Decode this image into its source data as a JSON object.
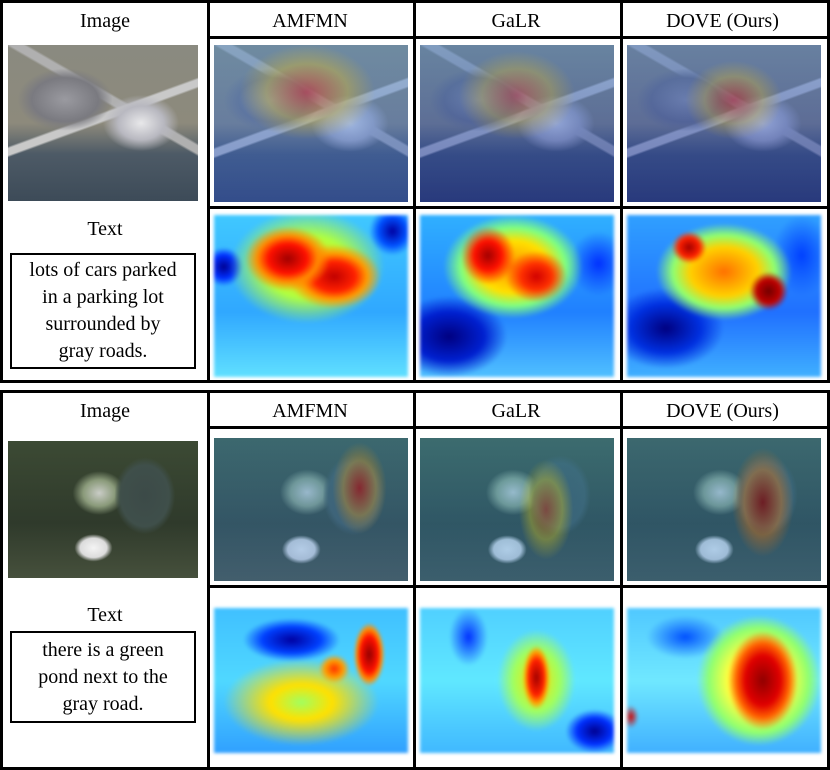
{
  "panels": [
    {
      "image_label": "Image",
      "text_label": "Text",
      "caption_lines": [
        "lots of cars parked",
        "in a parking lot",
        "surrounded by",
        "gray roads."
      ],
      "methods": [
        "AMFMN",
        "GaLR",
        "DOVE (Ours)"
      ]
    },
    {
      "image_label": "Image",
      "text_label": "Text",
      "caption_lines": [
        "there is a green",
        "pond next to the",
        "gray road."
      ],
      "methods": [
        "AMFMN",
        "GaLR",
        "DOVE (Ours)"
      ]
    }
  ]
}
